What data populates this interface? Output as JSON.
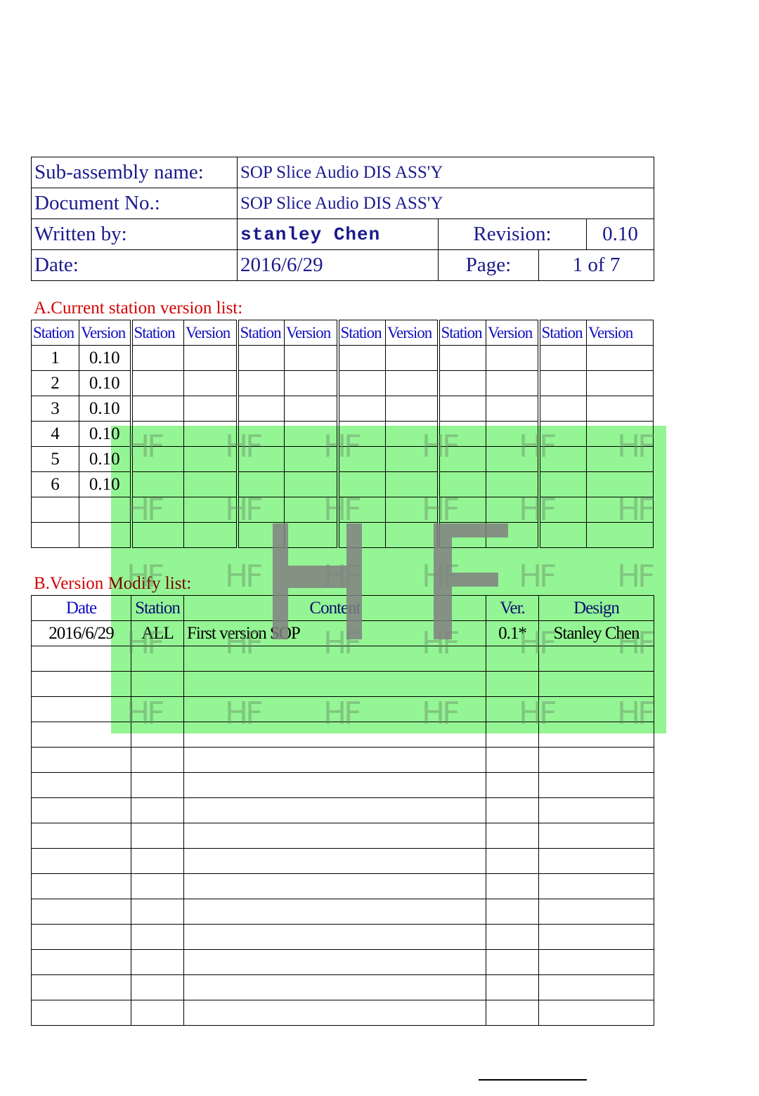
{
  "header": {
    "sub_assembly_label": "Sub-assembly name:",
    "sub_assembly_value": "SOP Slice Audio DIS ASS'Y",
    "document_no_label": "Document No.:",
    "document_no_value": "SOP Slice Audio DIS ASS'Y",
    "written_by_label": "Written by:",
    "written_by_value": "stanley Chen",
    "revision_label": "Revision:",
    "revision_value": "0.10",
    "date_label": "Date:",
    "date_value": "2016/6/29",
    "page_label": "Page:",
    "page_value": "1 of 7"
  },
  "section_a": {
    "title": "A.Current station version list:",
    "columns": [
      "Station",
      "Version",
      "Station",
      "Version",
      "Station",
      "Version",
      "Station",
      "Version",
      "Station",
      "Version",
      "Station",
      "Version"
    ],
    "rows": [
      [
        "1",
        "0.10"
      ],
      [
        "2",
        "0.10"
      ],
      [
        "3",
        "0.10"
      ],
      [
        "4",
        "0.10"
      ],
      [
        "5",
        "0.10"
      ],
      [
        "6",
        "0.10"
      ],
      [
        "",
        ""
      ],
      [
        "",
        ""
      ]
    ]
  },
  "section_b": {
    "title": "B.Version Modify  list:",
    "columns": [
      "Date",
      "Station",
      "Content",
      "Ver.",
      "Design"
    ],
    "rows": [
      [
        "2016/6/29",
        "ALL",
        "First version SOP",
        "0.1*",
        "Stanley Chen"
      ]
    ],
    "empty_rows": 15
  },
  "watermark": {
    "text": "HF",
    "overlay_color": "#98fb98"
  },
  "colors": {
    "label": "#1a1a8c",
    "header": "#1010c0",
    "section_title": "#d40000"
  }
}
